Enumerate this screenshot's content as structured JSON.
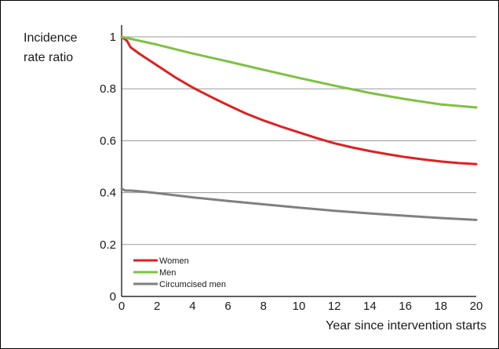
{
  "chart_data": {
    "type": "line",
    "ylabel_lines": [
      "Incidence",
      "rate ratio"
    ],
    "xlabel": "Year since intervention starts",
    "xlim": [
      0,
      20
    ],
    "ylim": [
      0,
      1
    ],
    "xticks": [
      0,
      2,
      4,
      6,
      8,
      10,
      12,
      14,
      16,
      18,
      20
    ],
    "yticks": [
      0,
      0.2,
      0.4,
      0.6,
      0.8,
      1
    ],
    "ytick_labels": [
      "0",
      "0.2",
      "0.4",
      "0.6",
      "0.8",
      "1"
    ],
    "grid": "horizontal",
    "legend_position": "bottom-left",
    "series": [
      {
        "name": "Women",
        "color": "#e02020",
        "x": [
          0,
          0.3,
          0.5,
          1,
          2,
          3,
          4,
          5,
          6,
          7,
          8,
          9,
          10,
          11,
          12,
          13,
          14,
          15,
          16,
          17,
          18,
          19,
          20
        ],
        "y": [
          1.0,
          0.985,
          0.96,
          0.935,
          0.89,
          0.845,
          0.805,
          0.77,
          0.737,
          0.705,
          0.678,
          0.654,
          0.632,
          0.61,
          0.59,
          0.574,
          0.56,
          0.548,
          0.537,
          0.528,
          0.52,
          0.514,
          0.51
        ]
      },
      {
        "name": "Men",
        "color": "#7dc242",
        "x": [
          0,
          2,
          4,
          6,
          8,
          10,
          12,
          14,
          16,
          18,
          20
        ],
        "y": [
          1.0,
          0.97,
          0.936,
          0.905,
          0.873,
          0.842,
          0.812,
          0.784,
          0.76,
          0.74,
          0.728
        ]
      },
      {
        "name": "Circumcised men",
        "color": "#808080",
        "x": [
          0,
          0.2,
          0.5,
          1,
          2,
          4,
          6,
          8,
          10,
          12,
          14,
          16,
          18,
          20
        ],
        "y": [
          0.415,
          0.408,
          0.408,
          0.405,
          0.398,
          0.382,
          0.368,
          0.355,
          0.342,
          0.33,
          0.32,
          0.311,
          0.302,
          0.295
        ]
      }
    ]
  }
}
